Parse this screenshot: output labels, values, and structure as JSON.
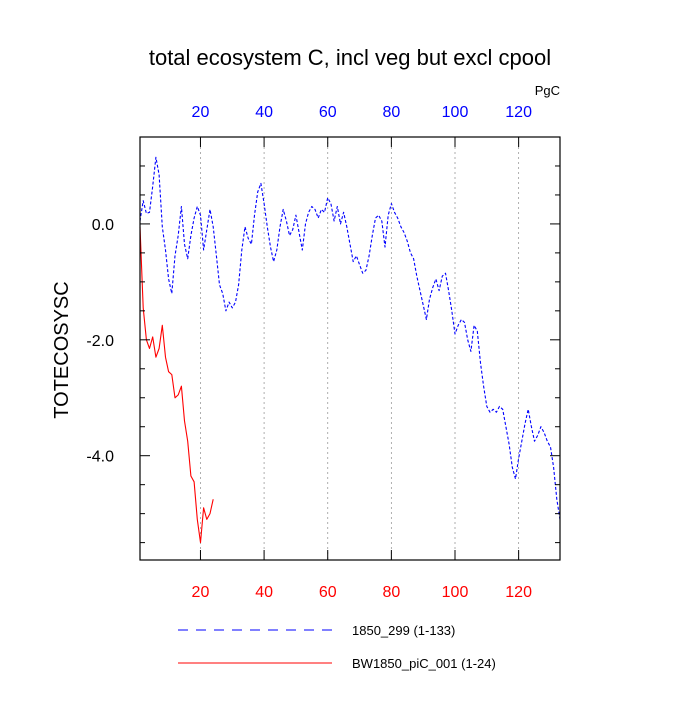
{
  "chart_data": {
    "type": "line",
    "title": "total ecosystem C, incl veg but excl cpool",
    "ylabel": "TOTECOSYSC",
    "units": "PgC",
    "xlim": [
      1,
      133
    ],
    "ylim": [
      -5.8,
      1.5
    ],
    "grid": "vertical dotted lines at x ticks",
    "x_ticks": [
      20,
      40,
      60,
      80,
      100,
      120
    ],
    "x_tick_labels": [
      "20",
      "40",
      "60",
      "80",
      "100",
      "120"
    ],
    "y_ticks": [
      0,
      -2,
      -4
    ],
    "y_tick_labels": [
      "0.0",
      "-2.0",
      "-4.0"
    ],
    "y_minor_ticks": [
      1.0,
      0.5,
      -0.5,
      -1.0,
      -1.5,
      -2.5,
      -3.0,
      -3.5,
      -4.5,
      -5.0,
      -5.5
    ],
    "legend_position": "bottom",
    "series": [
      {
        "name": "1850_299 (1-133)",
        "color": "#0000ff",
        "axis_color": "#0000ff",
        "style": "dashed",
        "x": [
          1,
          2,
          3,
          4,
          5,
          6,
          7,
          8,
          9,
          10,
          11,
          12,
          13,
          14,
          15,
          16,
          17,
          18,
          19,
          20,
          21,
          22,
          23,
          24,
          25,
          26,
          27,
          28,
          29,
          30,
          31,
          32,
          33,
          34,
          35,
          36,
          37,
          38,
          39,
          40,
          41,
          42,
          43,
          44,
          45,
          46,
          47,
          48,
          49,
          50,
          51,
          52,
          53,
          54,
          55,
          56,
          57,
          58,
          59,
          60,
          61,
          62,
          63,
          64,
          65,
          66,
          67,
          68,
          69,
          70,
          71,
          72,
          73,
          74,
          75,
          76,
          77,
          78,
          79,
          80,
          81,
          82,
          83,
          84,
          85,
          86,
          87,
          88,
          89,
          90,
          91,
          92,
          93,
          94,
          95,
          96,
          97,
          98,
          99,
          100,
          101,
          102,
          103,
          104,
          105,
          106,
          107,
          108,
          109,
          110,
          111,
          112,
          113,
          114,
          115,
          116,
          117,
          118,
          119,
          120,
          121,
          122,
          123,
          124,
          125,
          126,
          127,
          128,
          129,
          130,
          131,
          132,
          133
        ],
        "values": [
          0.05,
          0.4,
          0.18,
          0.2,
          0.65,
          1.15,
          0.85,
          -0.05,
          -0.45,
          -0.95,
          -1.2,
          -0.55,
          -0.2,
          0.3,
          -0.35,
          -0.6,
          -0.2,
          0.1,
          0.3,
          0.15,
          -0.45,
          -0.1,
          0.25,
          -0.05,
          -0.55,
          -1.05,
          -1.2,
          -1.5,
          -1.35,
          -1.45,
          -1.35,
          -1.05,
          -0.45,
          -0.05,
          -0.25,
          -0.35,
          0.15,
          0.55,
          0.7,
          0.35,
          -0.05,
          -0.4,
          -0.65,
          -0.45,
          -0.05,
          0.25,
          0.05,
          -0.2,
          -0.1,
          0.15,
          -0.15,
          -0.45,
          0.0,
          0.2,
          0.3,
          0.25,
          0.1,
          0.25,
          0.2,
          0.45,
          0.35,
          0.05,
          0.3,
          0.0,
          0.2,
          -0.05,
          -0.35,
          -0.65,
          -0.55,
          -0.7,
          -0.85,
          -0.8,
          -0.55,
          -0.2,
          0.1,
          0.15,
          0.05,
          -0.4,
          0.15,
          0.35,
          0.2,
          0.1,
          -0.05,
          -0.15,
          -0.3,
          -0.5,
          -0.6,
          -0.9,
          -1.15,
          -1.4,
          -1.65,
          -1.3,
          -1.1,
          -0.95,
          -1.15,
          -0.9,
          -0.85,
          -1.15,
          -1.5,
          -1.9,
          -1.75,
          -1.65,
          -1.7,
          -2.0,
          -2.2,
          -1.75,
          -1.85,
          -2.4,
          -2.8,
          -3.15,
          -3.25,
          -3.2,
          -3.25,
          -3.15,
          -3.2,
          -3.5,
          -3.8,
          -4.2,
          -4.4,
          -4.05,
          -3.75,
          -3.45,
          -3.2,
          -3.5,
          -3.75,
          -3.65,
          -3.5,
          -3.6,
          -3.75,
          -3.85,
          -4.2,
          -4.75,
          -5.1
        ]
      },
      {
        "name": "BW1850_piC_001 (1-24)",
        "color": "#ff0000",
        "axis_color": "#ff0000",
        "style": "solid",
        "x": [
          1,
          2,
          3,
          4,
          5,
          6,
          7,
          8,
          9,
          10,
          11,
          12,
          13,
          14,
          15,
          16,
          17,
          18,
          19,
          20,
          21,
          22,
          23,
          24
        ],
        "values": [
          -0.05,
          -1.45,
          -2.0,
          -2.15,
          -1.95,
          -2.3,
          -2.15,
          -1.75,
          -2.3,
          -2.55,
          -2.6,
          -3.0,
          -2.95,
          -2.8,
          -3.4,
          -3.75,
          -4.35,
          -4.45,
          -5.1,
          -5.5,
          -4.9,
          -5.1,
          -5.0,
          -4.75
        ]
      }
    ]
  }
}
